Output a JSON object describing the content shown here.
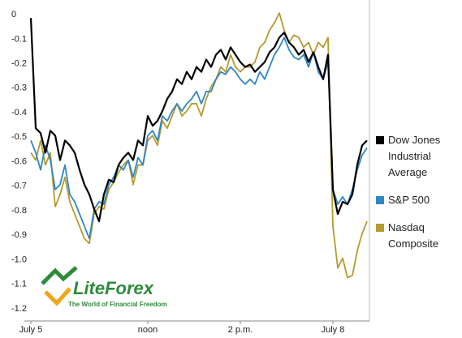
{
  "chart_data": {
    "type": "line",
    "categories": [
      "July 5",
      null,
      null,
      null,
      null,
      null,
      null,
      null,
      null,
      null,
      null,
      null,
      null,
      null,
      null,
      null,
      null,
      null,
      null,
      null,
      null,
      null,
      null,
      null,
      "noon",
      null,
      null,
      null,
      null,
      null,
      null,
      null,
      null,
      null,
      null,
      null,
      null,
      null,
      null,
      null,
      null,
      null,
      null,
      "2 p.m.",
      null,
      null,
      null,
      null,
      null,
      null,
      null,
      null,
      null,
      null,
      null,
      null,
      null,
      null,
      null,
      null,
      null,
      null,
      "July 8",
      null,
      null,
      null,
      null,
      null,
      null,
      null
    ],
    "series": [
      {
        "name": "Dow Jones Industrial Average",
        "color": "#000000",
        "values": [
          0,
          -0.45,
          -0.47,
          -0.55,
          -0.46,
          -0.48,
          -0.58,
          -0.5,
          -0.52,
          -0.55,
          -0.62,
          -0.68,
          -0.72,
          -0.78,
          -0.83,
          -0.72,
          -0.66,
          -0.67,
          -0.6,
          -0.57,
          -0.55,
          -0.58,
          -0.5,
          -0.52,
          -0.4,
          -0.44,
          -0.42,
          -0.38,
          -0.33,
          -0.3,
          -0.25,
          -0.27,
          -0.22,
          -0.25,
          -0.2,
          -0.22,
          -0.17,
          -0.2,
          -0.15,
          -0.13,
          -0.17,
          -0.12,
          -0.15,
          -0.18,
          -0.2,
          -0.19,
          -0.22,
          -0.2,
          -0.18,
          -0.14,
          -0.12,
          -0.08,
          -0.06,
          -0.1,
          -0.12,
          -0.15,
          -0.13,
          -0.18,
          -0.14,
          -0.2,
          -0.25,
          -0.15,
          -0.7,
          -0.8,
          -0.75,
          -0.76,
          -0.72,
          -0.6,
          -0.52,
          -0.5
        ]
      },
      {
        "name": "S&P 500",
        "color": "#2f86c4",
        "values": [
          -0.5,
          -0.55,
          -0.62,
          -0.52,
          -0.58,
          -0.7,
          -0.68,
          -0.6,
          -0.72,
          -0.75,
          -0.8,
          -0.85,
          -0.9,
          -0.78,
          -0.75,
          -0.76,
          -0.68,
          -0.65,
          -0.6,
          -0.62,
          -0.58,
          -0.65,
          -0.57,
          -0.6,
          -0.48,
          -0.46,
          -0.5,
          -0.4,
          -0.42,
          -0.38,
          -0.35,
          -0.38,
          -0.35,
          -0.33,
          -0.3,
          -0.35,
          -0.3,
          -0.3,
          -0.25,
          -0.22,
          -0.23,
          -0.2,
          -0.22,
          -0.25,
          -0.27,
          -0.25,
          -0.27,
          -0.22,
          -0.25,
          -0.2,
          -0.15,
          -0.12,
          -0.08,
          -0.13,
          -0.16,
          -0.17,
          -0.15,
          -0.2,
          -0.14,
          -0.22,
          -0.25,
          -0.18,
          -0.7,
          -0.76,
          -0.73,
          -0.76,
          -0.7,
          -0.62,
          -0.56,
          -0.53
        ]
      },
      {
        "name": "Nasdaq Composite",
        "color": "#b59a2f",
        "values": [
          -0.55,
          -0.58,
          -0.5,
          -0.6,
          -0.55,
          -0.77,
          -0.72,
          -0.65,
          -0.75,
          -0.8,
          -0.85,
          -0.9,
          -0.92,
          -0.8,
          -0.77,
          -0.78,
          -0.7,
          -0.67,
          -0.63,
          -0.6,
          -0.58,
          -0.68,
          -0.6,
          -0.6,
          -0.5,
          -0.48,
          -0.52,
          -0.42,
          -0.45,
          -0.4,
          -0.35,
          -0.4,
          -0.38,
          -0.35,
          -0.35,
          -0.4,
          -0.33,
          -0.28,
          -0.25,
          -0.2,
          -0.22,
          -0.15,
          -0.2,
          -0.22,
          -0.2,
          -0.2,
          -0.18,
          -0.12,
          -0.1,
          -0.05,
          -0.02,
          0.02,
          -0.05,
          -0.1,
          -0.07,
          -0.08,
          -0.12,
          -0.1,
          -0.15,
          -0.1,
          -0.12,
          -0.08,
          -0.85,
          -1.02,
          -0.98,
          -1.06,
          -1.05,
          -0.95,
          -0.88,
          -0.83
        ]
      }
    ],
    "ylim": [
      -1.2,
      0.05
    ],
    "yticks": [
      0,
      -0.1,
      -0.2,
      -0.3,
      -0.4,
      -0.5,
      -0.6,
      -0.7,
      -0.8,
      -0.9,
      {
        "value": -1,
        "label": "-1.0"
      },
      -1.1,
      -1.2
    ],
    "legend": "right"
  },
  "logo": {
    "name": "LiteForex",
    "tagline": "The World of Financial Freedom"
  }
}
